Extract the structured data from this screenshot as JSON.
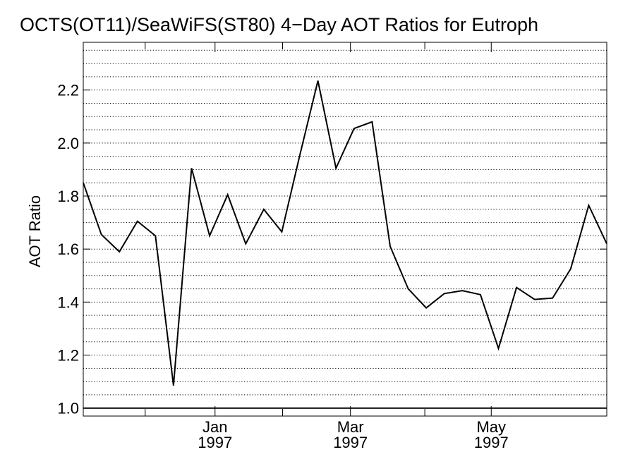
{
  "chart_data": {
    "type": "line",
    "title": "OCTS(OT11)/SeaWiFS(ST80) 4−Day AOT Ratios for Eutroph",
    "xlabel": "",
    "ylabel": "AOT Ratio",
    "ylim": [
      0.97,
      2.38
    ],
    "yticks": [
      1.0,
      1.2,
      1.4,
      1.6,
      1.8,
      2.0,
      2.2
    ],
    "ytick_labels": [
      "1.0",
      "1.2",
      "1.4",
      "1.6",
      "1.8",
      "2.0",
      "2.2"
    ],
    "reference_line": 1.0,
    "grid": "horizontal dotted",
    "x_index_range": [
      0,
      29
    ],
    "x_minor_ticks": [
      3.43,
      11.04,
      18.92
    ],
    "x_major_ticks": [
      {
        "pos": 7.3,
        "month": "Jan",
        "year": "1997"
      },
      {
        "pos": 14.8,
        "month": "Mar",
        "year": "1997"
      },
      {
        "pos": 22.6,
        "month": "May",
        "year": "1997"
      }
    ],
    "series": [
      {
        "x": [
          0,
          1,
          2,
          3,
          4,
          5,
          6,
          7,
          8,
          9,
          10,
          11,
          12,
          13,
          14,
          15,
          16,
          17,
          18,
          19,
          20,
          21,
          22,
          23,
          24,
          25,
          26,
          27,
          28,
          29
        ],
        "values": [
          1.85,
          1.655,
          1.59,
          1.705,
          1.65,
          1.085,
          1.905,
          1.65,
          1.805,
          1.62,
          1.75,
          1.665,
          1.955,
          2.235,
          1.905,
          2.055,
          2.08,
          1.61,
          1.45,
          1.378,
          1.432,
          1.443,
          1.428,
          1.225,
          1.455,
          1.41,
          1.415,
          1.525,
          1.765,
          1.62
        ]
      }
    ]
  }
}
